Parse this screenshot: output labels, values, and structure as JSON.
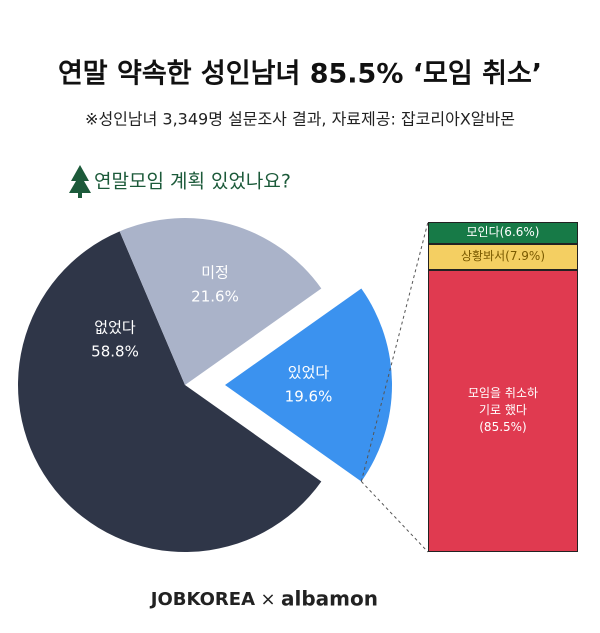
{
  "chart_data": {
    "type": "pie",
    "title": "연말 약속한 성인남녀 85.5% ‘모임 취소’",
    "subtitle": "※성인남녀 3,349명 설문조사 결과, 자료제공: 잡코리아X알바몬",
    "question": "연말모임 계획 있었나요?",
    "categories": [
      "없었다",
      "미정",
      "있었다"
    ],
    "values": [
      58.8,
      21.6,
      19.6
    ],
    "value_labels": [
      "58.8%",
      "21.6%",
      "19.6%"
    ],
    "colors": [
      "#2f3648",
      "#aab3c9",
      "#3b92ef"
    ],
    "breakdown": {
      "categories": [
        "모인다",
        "상황봐서",
        "모임을 취소하기로 했다"
      ],
      "values": [
        6.6,
        7.9,
        85.5
      ],
      "value_labels": [
        "(6.6%)",
        "(7.9%)",
        "(85.5%)"
      ],
      "colors": [
        "#177a47",
        "#f4cf62",
        "#e03a50"
      ]
    },
    "footer": {
      "left": "JOBKOREA",
      "separator": "×",
      "right": "albamon"
    }
  }
}
